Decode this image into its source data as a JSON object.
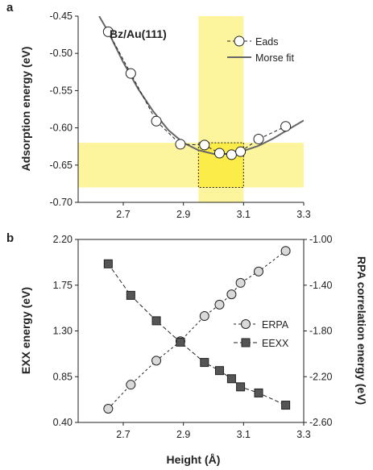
{
  "colors": {
    "highlight": "#fdf59e",
    "highlight_overlap": "#fbec4a",
    "marker_fill_a": "#ffffff",
    "marker_fill_circle_b": "#d9d9d9",
    "marker_fill_square_b": "#555555",
    "fit_line": "#666666",
    "axis": "#222222"
  },
  "chart_data": [
    {
      "panel": "a",
      "type": "scatter",
      "annotation": "Bz/Au(111)",
      "xlabel": "",
      "ylabel": "Adsorption energy (eV)",
      "xlim": [
        2.55,
        3.3
      ],
      "ylim": [
        -0.7,
        -0.45
      ],
      "x_ticks": [
        "2.7",
        "2.9",
        "3.1",
        "3.3"
      ],
      "y_ticks": [
        "-0.45",
        "-0.50",
        "-0.55",
        "-0.60",
        "-0.65",
        "-0.70"
      ],
      "legend_position": "top-right",
      "highlight_bands": {
        "x_range": [
          2.95,
          3.1
        ],
        "y_range": [
          -0.68,
          -0.62
        ],
        "dashed_box": {
          "x": [
            2.95,
            3.1
          ],
          "y": [
            -0.68,
            -0.62
          ]
        }
      },
      "series": [
        {
          "name": "Eads",
          "marker": "circle",
          "line": "dashed",
          "x": [
            2.65,
            2.725,
            2.81,
            2.89,
            2.97,
            3.02,
            3.06,
            3.09,
            3.15,
            3.24
          ],
          "y": [
            -0.471,
            -0.527,
            -0.591,
            -0.622,
            -0.623,
            -0.634,
            -0.636,
            -0.632,
            -0.615,
            -0.598
          ]
        },
        {
          "name": "Morse fit",
          "marker": "none",
          "line": "solid",
          "x": [
            2.62,
            2.65,
            2.7,
            2.75,
            2.8,
            2.85,
            2.9,
            2.95,
            3.0,
            3.05,
            3.1,
            3.15,
            3.2,
            3.25,
            3.3
          ],
          "y": [
            -0.45,
            -0.471,
            -0.512,
            -0.548,
            -0.578,
            -0.603,
            -0.62,
            -0.63,
            -0.635,
            -0.635,
            -0.631,
            -0.624,
            -0.614,
            -0.602,
            -0.59
          ]
        }
      ]
    },
    {
      "panel": "b",
      "type": "line",
      "xlabel": "Height (Å)",
      "ylabel_left": "EXX energy  (eV)",
      "ylabel_right": "RPA correlation energy  (eV)",
      "xlim": [
        2.55,
        3.3
      ],
      "ylim_left": [
        0.4,
        2.2
      ],
      "ylim_right": [
        -2.6,
        -1.0
      ],
      "x_ticks": [
        "2.7",
        "2.9",
        "3.1",
        "3.3"
      ],
      "y_ticks_left": [
        "2.20",
        "1.75",
        "1.30",
        "0.85",
        "0.40"
      ],
      "y_ticks_right": [
        "-1.00",
        "-1.40",
        "-1.80",
        "-2.20",
        "-2.60"
      ],
      "legend_position": "center-right",
      "series": [
        {
          "name": "ERPA",
          "axis": "right",
          "marker": "circle",
          "line": "dashed",
          "x": [
            2.65,
            2.725,
            2.81,
            2.89,
            2.97,
            3.02,
            3.06,
            3.09,
            3.15,
            3.24
          ],
          "y": [
            -2.48,
            -2.27,
            -2.06,
            -1.89,
            -1.67,
            -1.57,
            -1.48,
            -1.38,
            -1.28,
            -1.1
          ]
        },
        {
          "name": "EEXX",
          "axis": "left",
          "marker": "square",
          "line": "dashed",
          "x": [
            2.65,
            2.725,
            2.81,
            2.89,
            2.97,
            3.02,
            3.06,
            3.09,
            3.15,
            3.24
          ],
          "y": [
            1.96,
            1.65,
            1.4,
            1.19,
            0.99,
            0.91,
            0.83,
            0.75,
            0.69,
            0.57
          ]
        }
      ]
    }
  ]
}
